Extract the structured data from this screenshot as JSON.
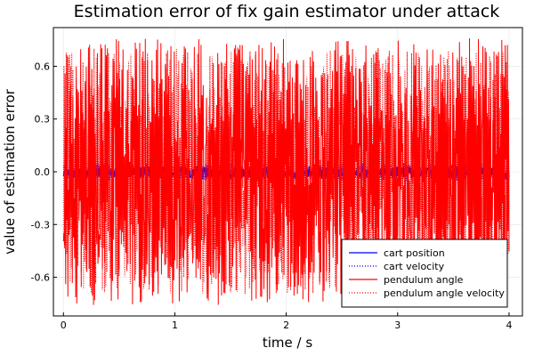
{
  "chart_data": {
    "type": "line",
    "title": "Estimation error of fix gain estimator under attack",
    "xlabel": "time / s",
    "ylabel": "value of estimation error",
    "xlim": [
      -0.09,
      4.12
    ],
    "ylim": [
      -0.82,
      0.82
    ],
    "xticks": [
      0,
      1,
      2,
      3,
      4
    ],
    "yticks": [
      -0.6,
      -0.3,
      0.0,
      0.3,
      0.6
    ],
    "ytick_labels": [
      "-0.6",
      "-0.3",
      "0.0",
      "0.3",
      "0.6"
    ],
    "grid": true,
    "legend_position": "bottom-right",
    "sample_step": 0.005,
    "series": [
      {
        "name": "cart position",
        "color": "#0000ff",
        "style": "solid",
        "t_start": 0,
        "t_end": 4,
        "amplitude": 0.035,
        "offset": -0.005,
        "seed": 11
      },
      {
        "name": "cart velocity",
        "color": "#0000ff",
        "style": "dotted",
        "t_start": 0,
        "t_end": 4,
        "amplitude": 0.05,
        "offset": 0.0,
        "seed": 23
      },
      {
        "name": "pendulum angle",
        "color": "#ff0000",
        "style": "solid",
        "t_start": 0,
        "t_end": 4,
        "amplitude": 0.76,
        "offset": 0.0,
        "seed": 37
      },
      {
        "name": "pendulum angle velocity",
        "color": "#ff0000",
        "style": "dotted",
        "t_start": 0,
        "t_end": 4,
        "amplitude": 0.7,
        "offset": 0.0,
        "seed": 51
      }
    ]
  }
}
